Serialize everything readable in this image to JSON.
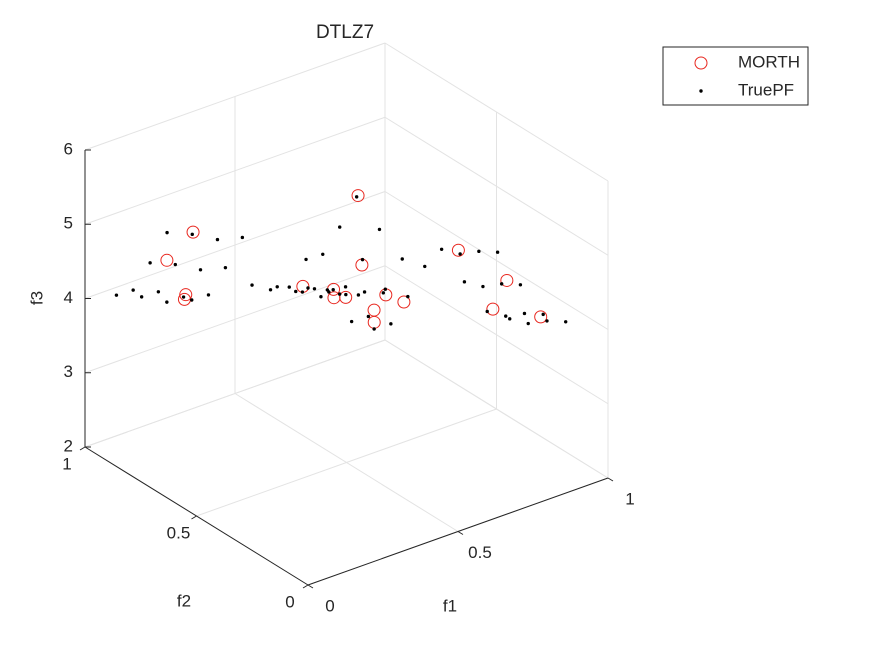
{
  "chart_data": {
    "type": "scatter3d",
    "title": "DTLZ7",
    "xlabel": "f1",
    "ylabel": "f2",
    "zlabel": "f3",
    "xlim": [
      0,
      1
    ],
    "ylim": [
      0,
      1
    ],
    "zlim": [
      2,
      6
    ],
    "xticks": [
      0,
      0.5,
      1
    ],
    "yticks": [
      0,
      0.5,
      1
    ],
    "zticks": [
      2,
      3,
      4,
      5,
      6
    ],
    "grid": true,
    "legend": "top-right",
    "series": [
      {
        "name": "MORTH",
        "color": "#e8271f",
        "marker": "circle",
        "x": [
          0.02,
          0.1,
          0.2,
          0.25,
          0.05,
          0.15,
          0.22,
          0.1,
          0.7,
          0.75,
          0.85,
          0.65,
          0.7,
          0.8,
          0.86,
          0.65,
          0.75,
          0.84
        ],
        "y": [
          0.05,
          0.02,
          0.1,
          0.22,
          0.7,
          0.75,
          0.85,
          0.65,
          0.05,
          0.18,
          0.1,
          0.2,
          0.7,
          0.78,
          0.86,
          0.65,
          0.66,
          0.7
        ],
        "z": [
          5.9,
          5.8,
          5.4,
          5.1,
          5.0,
          4.3,
          3.95,
          5.4,
          5.0,
          4.3,
          4.2,
          5.2,
          4.0,
          3.1,
          2.7,
          5.1,
          3.6,
          3.3
        ]
      },
      {
        "name": "TruePF",
        "color": "#000000",
        "marker": "dot",
        "x": [
          0,
          0,
          0,
          0,
          0,
          0,
          0,
          0,
          0.084,
          0.084,
          0.084,
          0.084,
          0.084,
          0.084,
          0.084,
          0.084,
          0.168,
          0.168,
          0.168,
          0.168,
          0.168,
          0.168,
          0.168,
          0.168,
          0.251,
          0.251,
          0.251,
          0.251,
          0.251,
          0.251,
          0.251,
          0.251,
          0.632,
          0.632,
          0.632,
          0.632,
          0.632,
          0.632,
          0.632,
          0.632,
          0.708,
          0.708,
          0.708,
          0.708,
          0.708,
          0.708,
          0.708,
          0.708,
          0.784,
          0.784,
          0.784,
          0.784,
          0.784,
          0.784,
          0.784,
          0.784,
          0.859,
          0.859,
          0.859,
          0.859,
          0.859,
          0.859,
          0.859,
          0.859
        ],
        "y": [
          0,
          0.084,
          0.168,
          0.251,
          0.632,
          0.708,
          0.784,
          0.859,
          0,
          0.084,
          0.168,
          0.251,
          0.632,
          0.708,
          0.784,
          0.859,
          0,
          0.084,
          0.168,
          0.251,
          0.632,
          0.708,
          0.784,
          0.859,
          0,
          0.084,
          0.168,
          0.251,
          0.632,
          0.708,
          0.784,
          0.859,
          0,
          0.084,
          0.168,
          0.251,
          0.632,
          0.708,
          0.784,
          0.859,
          0,
          0.084,
          0.168,
          0.251,
          0.632,
          0.708,
          0.784,
          0.859,
          0,
          0.084,
          0.168,
          0.251,
          0.632,
          0.708,
          0.784,
          0.859,
          0,
          0.084,
          0.168,
          0.251,
          0.632,
          0.708,
          0.784,
          0.859
        ],
        "z": [
          6,
          5.856,
          5.664,
          5.573,
          5.571,
          5.023,
          4.515,
          4.307,
          5.856,
          5.712,
          5.52,
          5.429,
          5.427,
          4.879,
          4.371,
          4.163,
          5.664,
          5.52,
          5.328,
          5.237,
          5.235,
          4.687,
          4.179,
          3.971,
          5.573,
          5.429,
          5.237,
          5.146,
          5.144,
          4.596,
          4.088,
          3.88,
          5.571,
          5.427,
          5.235,
          5.144,
          5.142,
          4.594,
          4.086,
          3.878,
          5.023,
          4.879,
          4.687,
          4.596,
          4.594,
          4.046,
          3.538,
          3.33,
          4.515,
          4.371,
          4.179,
          4.088,
          4.086,
          3.538,
          3.03,
          2.822,
          4.307,
          4.163,
          3.971,
          3.88,
          3.878,
          3.33,
          2.822,
          2.614
        ]
      }
    ]
  }
}
